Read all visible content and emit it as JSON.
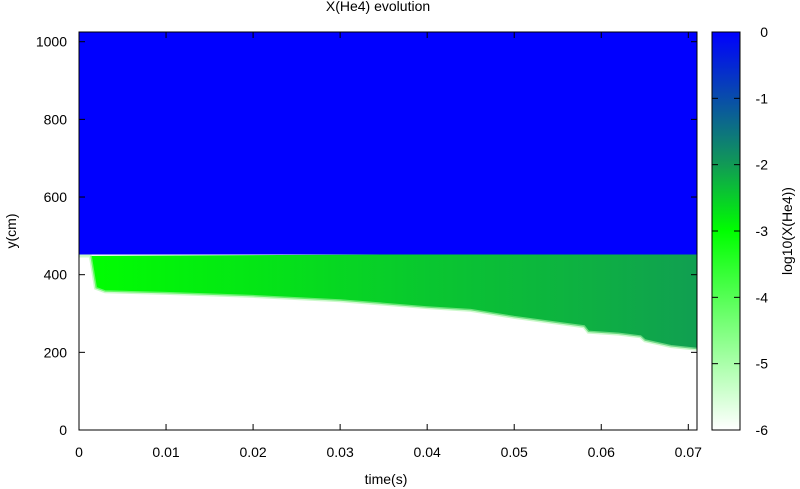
{
  "chart_data": {
    "type": "heatmap",
    "title": "X(He4) evolution",
    "xlabel": "time(s)",
    "ylabel": "y(cm)",
    "xlim": [
      0,
      0.071
    ],
    "ylim": [
      0,
      1025
    ],
    "x_ticks": [
      {
        "value": 0,
        "label": "0"
      },
      {
        "value": 0.01,
        "label": "0.01"
      },
      {
        "value": 0.02,
        "label": "0.02"
      },
      {
        "value": 0.03,
        "label": "0.03"
      },
      {
        "value": 0.04,
        "label": "0.04"
      },
      {
        "value": 0.05,
        "label": "0.05"
      },
      {
        "value": 0.06,
        "label": "0.06"
      },
      {
        "value": 0.07,
        "label": "0.07"
      }
    ],
    "y_ticks": [
      {
        "value": 0,
        "label": "0"
      },
      {
        "value": 200,
        "label": "200"
      },
      {
        "value": 400,
        "label": "400"
      },
      {
        "value": 600,
        "label": "600"
      },
      {
        "value": 800,
        "label": "800"
      },
      {
        "value": 1000,
        "label": "1000"
      }
    ],
    "colorbar": {
      "label": "log10(X(He4))",
      "range": [
        -6,
        0
      ],
      "ticks": [
        {
          "value": 0,
          "label": "0"
        },
        {
          "value": -1,
          "label": "-1"
        },
        {
          "value": -2,
          "label": "-2"
        },
        {
          "value": -3,
          "label": "-3"
        },
        {
          "value": -4,
          "label": "-4"
        },
        {
          "value": -5,
          "label": "-5"
        },
        {
          "value": -6,
          "label": "-6"
        }
      ],
      "color_stops": [
        {
          "value": -6,
          "color": "#ffffff"
        },
        {
          "value": -3,
          "color": "#00ff00"
        },
        {
          "value": -2,
          "color": "#119a55"
        },
        {
          "value": 0,
          "color": "#0000ff"
        }
      ]
    },
    "regions": {
      "upper_layer": {
        "y_min": 452,
        "y_max": 1025,
        "log10_value": 0
      },
      "interface_top_y": [
        {
          "t": 0.0,
          "y": 448
        },
        {
          "t": 0.071,
          "y": 456
        }
      ],
      "lower_front_y": [
        {
          "t": 0.0,
          "y": 448
        },
        {
          "t": 0.0013,
          "y": 448
        },
        {
          "t": 0.0019,
          "y": 365
        },
        {
          "t": 0.003,
          "y": 356
        },
        {
          "t": 0.01,
          "y": 352
        },
        {
          "t": 0.02,
          "y": 344
        },
        {
          "t": 0.03,
          "y": 333
        },
        {
          "t": 0.04,
          "y": 315
        },
        {
          "t": 0.045,
          "y": 308
        },
        {
          "t": 0.05,
          "y": 290
        },
        {
          "t": 0.055,
          "y": 275
        },
        {
          "t": 0.058,
          "y": 266
        },
        {
          "t": 0.0585,
          "y": 252
        },
        {
          "t": 0.062,
          "y": 247
        },
        {
          "t": 0.0645,
          "y": 240
        },
        {
          "t": 0.065,
          "y": 230
        },
        {
          "t": 0.068,
          "y": 215
        },
        {
          "t": 0.071,
          "y": 208
        }
      ],
      "lower_layer_log10_value": [
        {
          "t": 0.0,
          "value": -3.0
        },
        {
          "t": 0.02,
          "value": -2.75
        },
        {
          "t": 0.04,
          "value": -2.45
        },
        {
          "t": 0.06,
          "value": -2.2
        },
        {
          "t": 0.071,
          "value": -2.05
        }
      ]
    }
  }
}
